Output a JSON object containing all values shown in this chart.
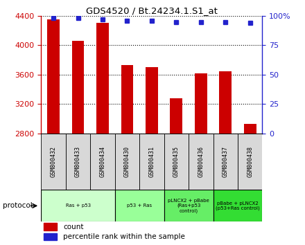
{
  "title": "GDS4520 / Bt.24234.1.S1_at",
  "samples": [
    "GSM800432",
    "GSM800433",
    "GSM800434",
    "GSM800430",
    "GSM800431",
    "GSM800435",
    "GSM800436",
    "GSM800437",
    "GSM800438"
  ],
  "counts": [
    4350,
    4060,
    4310,
    3730,
    3700,
    3280,
    3620,
    3650,
    2930
  ],
  "percentile_ranks": [
    98,
    98,
    97,
    96,
    96,
    95,
    95,
    95,
    94
  ],
  "ymin": 2800,
  "ymax": 4400,
  "yticks": [
    2800,
    3200,
    3600,
    4000,
    4400
  ],
  "y2ticks": [
    0,
    25,
    50,
    75,
    100
  ],
  "bar_color": "#cc0000",
  "dot_color": "#2222cc",
  "protocol_groups": [
    {
      "label": "Ras + p53",
      "start": 0,
      "end": 2,
      "color": "#ccffcc"
    },
    {
      "label": "p53 + Ras",
      "start": 3,
      "end": 4,
      "color": "#99ff99"
    },
    {
      "label": "pLNCX2 + pBabe\n(Ras+p53\ncontrol)",
      "start": 5,
      "end": 6,
      "color": "#66ee66"
    },
    {
      "label": "pBabe + pLNCX2\n(p53+Ras control)",
      "start": 7,
      "end": 8,
      "color": "#33dd33"
    }
  ],
  "legend_count_color": "#cc0000",
  "legend_dot_color": "#2222cc",
  "tick_color_left": "#cc0000",
  "tick_color_right": "#2222cc",
  "sample_box_color": "#d8d8d8",
  "bar_width": 0.5
}
